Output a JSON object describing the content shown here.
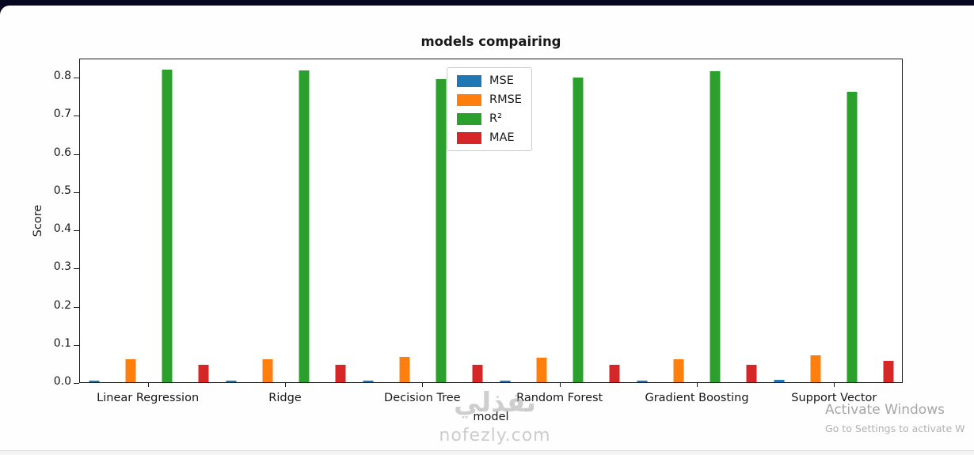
{
  "window": {
    "top_bar_color": "#07071f"
  },
  "chart_data": {
    "type": "bar",
    "title": "models compairing",
    "xlabel": "model",
    "ylabel": "Score",
    "ylim": [
      0,
      0.85
    ],
    "yticks": [
      0.0,
      0.1,
      0.2,
      0.3,
      0.4,
      0.5,
      0.6,
      0.7,
      0.8
    ],
    "grid": false,
    "legend_position": "upper center",
    "categories": [
      "Linear Regression",
      "Ridge",
      "Decision Tree",
      "Random Forest",
      "Gradient Boosting",
      "Support Vector"
    ],
    "series": [
      {
        "name": "MSE",
        "color": "#1f77b4",
        "values": [
          0.005,
          0.005,
          0.005,
          0.005,
          0.005,
          0.006
        ]
      },
      {
        "name": "RMSE",
        "color": "#ff7f0e",
        "values": [
          0.061,
          0.061,
          0.067,
          0.064,
          0.061,
          0.071
        ]
      },
      {
        "name": "R²",
        "color": "#2ca02c",
        "values": [
          0.818,
          0.816,
          0.795,
          0.798,
          0.815,
          0.76
        ]
      },
      {
        "name": "MAE",
        "color": "#d62728",
        "values": [
          0.045,
          0.045,
          0.045,
          0.045,
          0.045,
          0.057
        ]
      }
    ]
  },
  "watermark": {
    "arabic_text": "نفذلي",
    "site_text": "nofezly.com"
  },
  "activation": {
    "line1": "Activate Windows",
    "line2": "Go to Settings to activate W"
  }
}
